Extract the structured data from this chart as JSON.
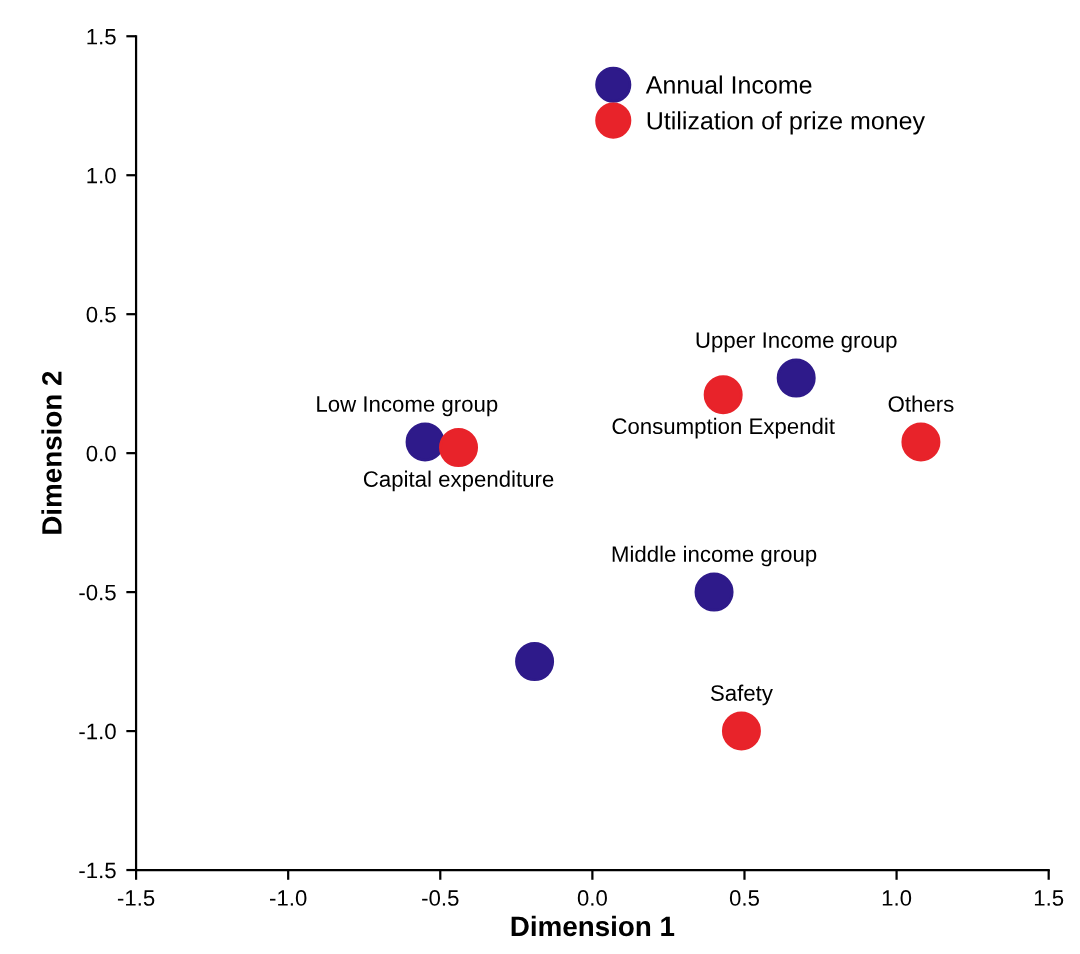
{
  "chart_data": {
    "type": "scatter",
    "xlabel": "Dimension 1",
    "ylabel": "Dimension 2",
    "xlim": [
      -1.5,
      1.5
    ],
    "ylim": [
      -1.5,
      1.5
    ],
    "xticks": [
      -1.5,
      {
        "value": -1.0,
        "label": "-1.0"
      },
      -0.5,
      {
        "value": 0,
        "label": "0.0"
      },
      0.5,
      {
        "value": 1.0,
        "label": "1.0"
      },
      1.5
    ],
    "yticks": [
      -1.5,
      {
        "value": -1.0,
        "label": "-1.0"
      },
      -0.5,
      {
        "value": 0,
        "label": "0.0"
      },
      0.5,
      {
        "value": 1.0,
        "label": "1.0"
      },
      1.5
    ],
    "grid": false,
    "legend": "top right",
    "marker": "circle",
    "series": [
      {
        "name": "Annual Income",
        "color": "#2e1a8a",
        "x": [
          -0.55,
          0.67,
          0.4,
          -0.19
        ],
        "values": [
          0.04,
          0.27,
          -0.5,
          -0.75
        ]
      },
      {
        "name": "Utilization of prize money",
        "color": "#e8232a",
        "x": [
          -0.44,
          0.43,
          1.08,
          0.49
        ],
        "values": [
          0.02,
          0.21,
          0.04,
          -1.0
        ]
      }
    ],
    "annotations": [
      {
        "text": "Low Income group",
        "x": -0.55,
        "y": 0.04
      },
      {
        "text": "Capital expenditure",
        "x": -0.44,
        "y": 0.02
      },
      {
        "text": "Upper Income group",
        "x": 0.67,
        "y": 0.27
      },
      {
        "text": "Consumption Expendit",
        "x": 0.43,
        "y": 0.21
      },
      {
        "text": "Others",
        "x": 1.08,
        "y": 0.04
      },
      {
        "text": "Middle income group",
        "x": 0.4,
        "y": -0.5
      },
      {
        "text": "Safety",
        "x": 0.49,
        "y": -1.0
      }
    ]
  }
}
